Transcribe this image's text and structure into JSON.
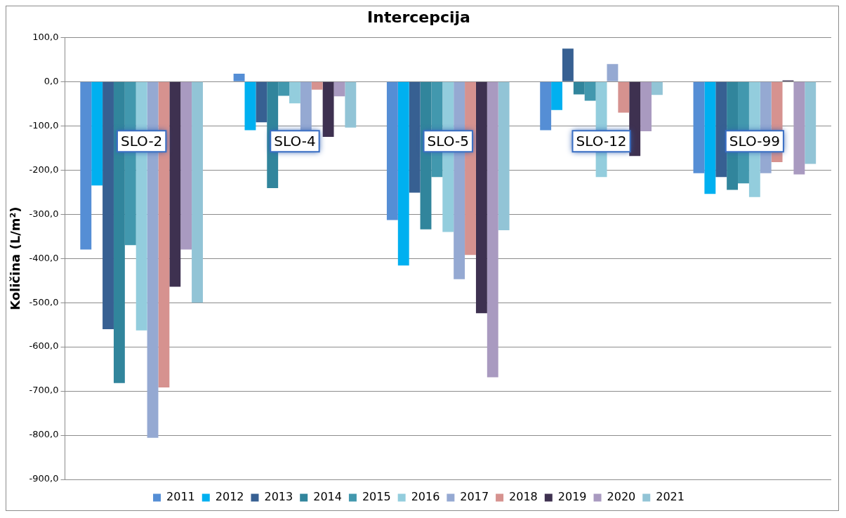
{
  "chart_data": {
    "type": "bar",
    "title": "Intercepcija",
    "ylabel": "Količina (L/m²)",
    "categories": [
      "SLO-2",
      "SLO-4",
      "SLO-5",
      "SLO-12",
      "SLO-99"
    ],
    "series": [
      {
        "name": "2011",
        "color": "#558ed5",
        "values": [
          -380,
          18,
          -313,
          -110,
          -207
        ]
      },
      {
        "name": "2012",
        "color": "#00b0f0",
        "values": [
          -235,
          -110,
          -416,
          -64,
          -254
        ]
      },
      {
        "name": "2013",
        "color": "#376092",
        "values": [
          -560,
          -92,
          -251,
          75,
          -216
        ]
      },
      {
        "name": "2014",
        "color": "#31859c",
        "values": [
          -682,
          -241,
          -334,
          -29,
          -245
        ]
      },
      {
        "name": "2015",
        "color": "#4298ae",
        "values": [
          -370,
          -32,
          -216,
          -43,
          -230
        ]
      },
      {
        "name": "2016",
        "color": "#93cddd",
        "values": [
          -563,
          -49,
          -340,
          -216,
          -261
        ]
      },
      {
        "name": "2017",
        "color": "#95a9d2",
        "values": [
          -806,
          -110,
          -447,
          40,
          -207
        ]
      },
      {
        "name": "2018",
        "color": "#d6928f",
        "values": [
          -692,
          -18,
          -392,
          -70,
          -182
        ]
      },
      {
        "name": "2019",
        "color": "#3e3150",
        "values": [
          -464,
          -125,
          -524,
          -168,
          3
        ]
      },
      {
        "name": "2020",
        "color": "#a99ac0",
        "values": [
          -380,
          -33,
          -669,
          -112,
          -210
        ]
      },
      {
        "name": "2021",
        "color": "#92c4d6",
        "values": [
          -500,
          -104,
          -336,
          -30,
          -186
        ]
      }
    ],
    "ylim": [
      -900,
      100
    ],
    "yticks": [
      {
        "value": 100,
        "label": "100,0"
      },
      {
        "value": 0,
        "label": "0,0"
      },
      {
        "value": -100,
        "label": "-100,0"
      },
      {
        "value": -200,
        "label": "-200,0"
      },
      {
        "value": -300,
        "label": "-300,0"
      },
      {
        "value": -400,
        "label": "-400,0"
      },
      {
        "value": -500,
        "label": "-500,0"
      },
      {
        "value": -600,
        "label": "-600,0"
      },
      {
        "value": -700,
        "label": "-700,0"
      },
      {
        "value": -800,
        "label": "-800,0"
      },
      {
        "value": -900,
        "label": "-900,0"
      }
    ],
    "grid": "y",
    "legend": "bottom"
  }
}
